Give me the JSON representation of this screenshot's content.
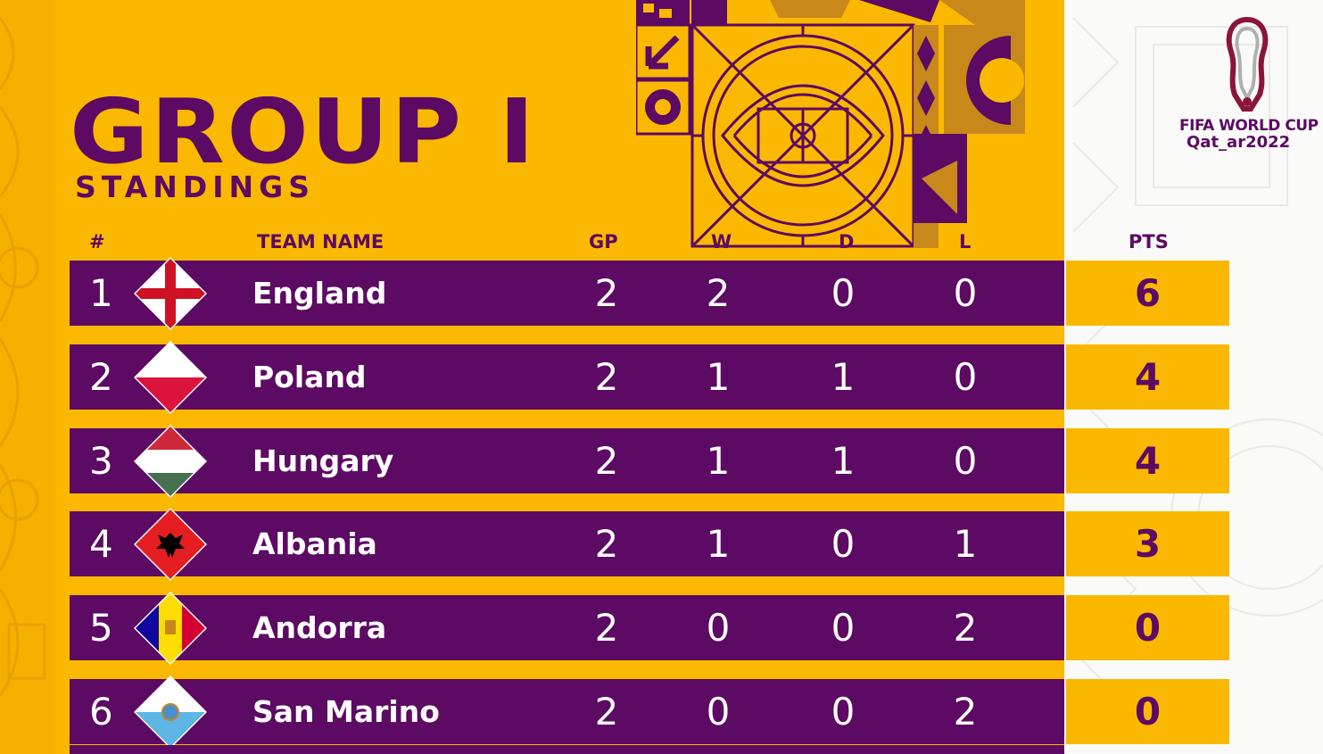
{
  "header": {
    "title": "GROUP I",
    "subtitle": "STANDINGS"
  },
  "columns": {
    "rank": "#",
    "team": "TEAM NAME",
    "gp": "GP",
    "w": "W",
    "d": "D",
    "l": "L",
    "pts": "PTS"
  },
  "logo": {
    "line1": "FIFA WORLD CUP",
    "line2": "Qat_ar2022"
  },
  "standings": [
    {
      "rank": "1",
      "team": "England",
      "gp": "2",
      "w": "2",
      "d": "0",
      "l": "0",
      "pts": "6",
      "flag_icon": "england-flag-icon"
    },
    {
      "rank": "2",
      "team": "Poland",
      "gp": "2",
      "w": "1",
      "d": "1",
      "l": "0",
      "pts": "4",
      "flag_icon": "poland-flag-icon"
    },
    {
      "rank": "3",
      "team": "Hungary",
      "gp": "2",
      "w": "1",
      "d": "1",
      "l": "0",
      "pts": "4",
      "flag_icon": "hungary-flag-icon"
    },
    {
      "rank": "4",
      "team": "Albania",
      "gp": "2",
      "w": "1",
      "d": "0",
      "l": "1",
      "pts": "3",
      "flag_icon": "albania-flag-icon"
    },
    {
      "rank": "5",
      "team": "Andorra",
      "gp": "2",
      "w": "0",
      "d": "0",
      "l": "2",
      "pts": "0",
      "flag_icon": "andorra-flag-icon"
    },
    {
      "rank": "6",
      "team": "San Marino",
      "gp": "2",
      "w": "0",
      "d": "0",
      "l": "2",
      "pts": "0",
      "flag_icon": "san-marino-flag-icon"
    }
  ],
  "colors": {
    "background": "#FBB800",
    "row": "#5C0A63",
    "text_light": "#FFFFFF",
    "accent": "#5C0A63"
  }
}
